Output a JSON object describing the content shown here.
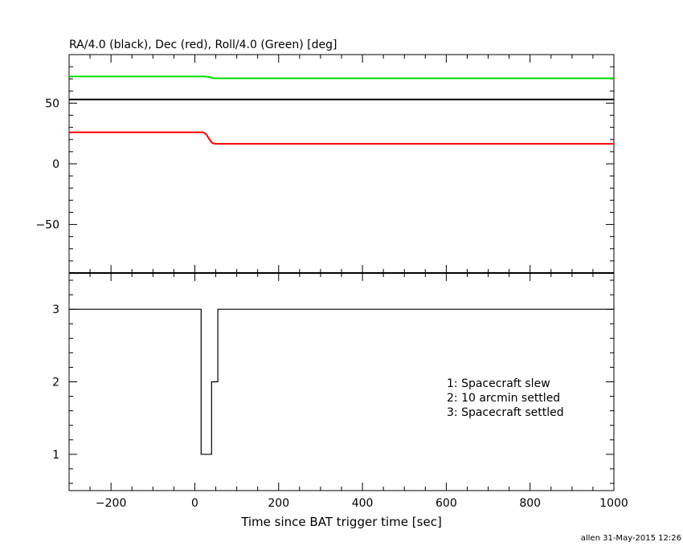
{
  "chart_data": [
    {
      "type": "line",
      "title": "RA/4.0 (black), Dec (red), Roll/4.0 (Green) [deg]",
      "xlabel": "",
      "ylabel": "",
      "xlim": [
        -300,
        1000
      ],
      "ylim": [
        -90,
        90
      ],
      "yticks": [
        -50,
        0,
        50
      ],
      "series": [
        {
          "color": "#000000",
          "x": [
            -300,
            340,
            1000
          ],
          "y": [
            53,
            53,
            53
          ]
        },
        {
          "color": "#ff0000",
          "x": [
            -300,
            20,
            28,
            35,
            42,
            50,
            340,
            1000
          ],
          "y": [
            26,
            26,
            24,
            20,
            17,
            16.5,
            16.5,
            16.5
          ]
        },
        {
          "color": "#00dd00",
          "x": [
            -300,
            25,
            35,
            45,
            340,
            1000
          ],
          "y": [
            72,
            72,
            71.5,
            70.5,
            70.5,
            70.5
          ]
        }
      ],
      "grid": false
    },
    {
      "type": "line",
      "title": "",
      "xlabel": "Time since BAT trigger time [sec]",
      "ylabel": "",
      "xlim": [
        -300,
        1000
      ],
      "ylim": [
        0.5,
        3.5
      ],
      "yticks": [
        1,
        2,
        3
      ],
      "xticks": [
        -200,
        0,
        200,
        400,
        600,
        800,
        1000
      ],
      "series": [
        {
          "color": "#000000",
          "step": true,
          "x": [
            -300,
            15,
            15,
            40,
            40,
            55,
            55,
            1000
          ],
          "y": [
            3,
            3,
            1,
            1,
            2,
            2,
            3,
            3
          ]
        }
      ],
      "annotations": [
        "1: Spacecraft slew",
        "2: 10 arcmin settled",
        "3: Spacecraft settled"
      ]
    }
  ],
  "footer": "allen 31-May-2015 12:26"
}
